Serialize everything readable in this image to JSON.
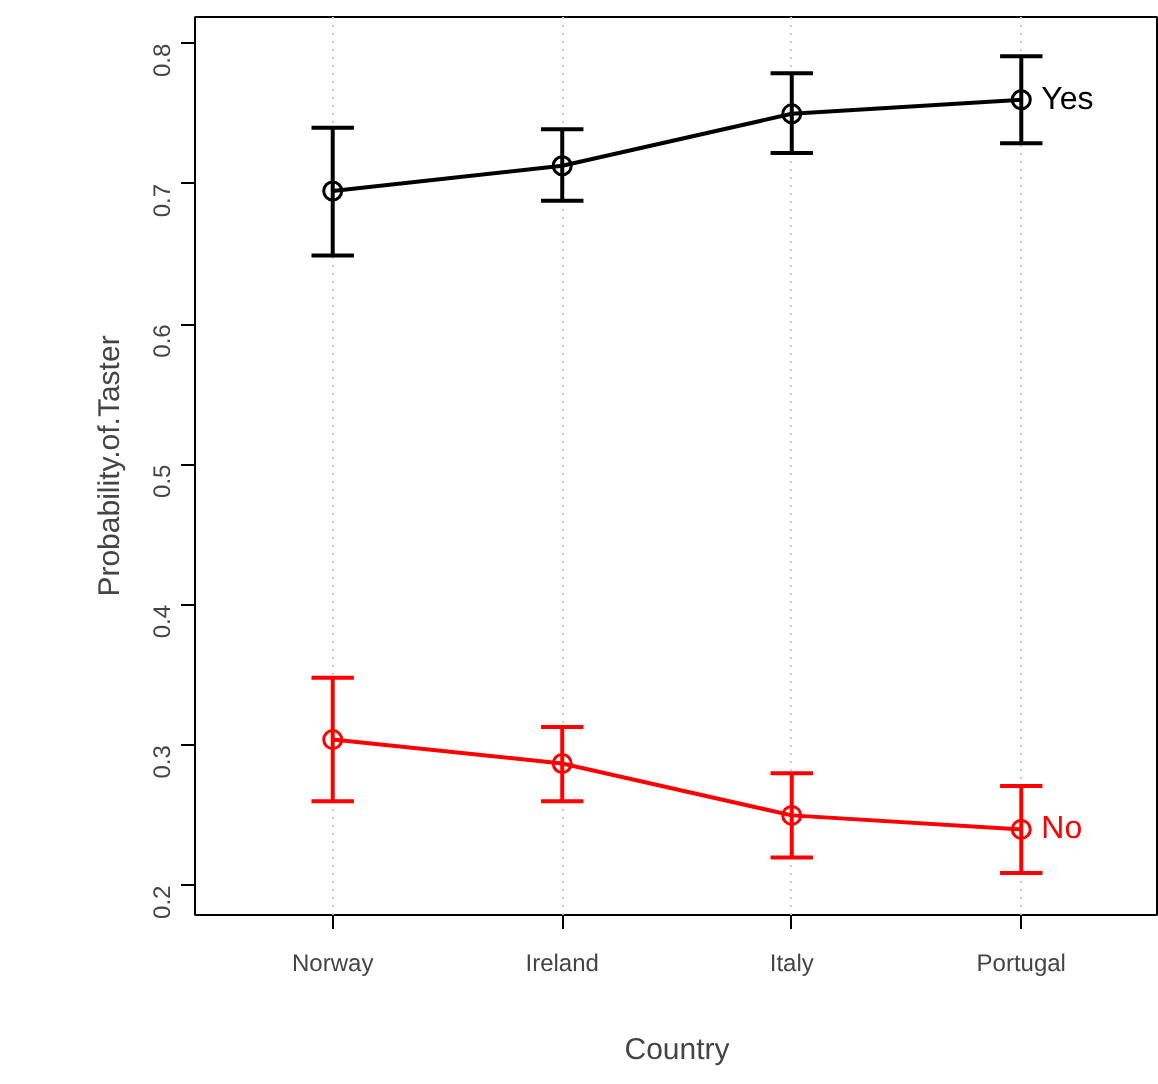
{
  "chart_data": {
    "type": "line",
    "xlabel": "Country",
    "ylabel": "Probability.of.Taster",
    "categories": [
      "Norway",
      "Ireland",
      "Italy",
      "Portugal"
    ],
    "ylim": [
      0.179,
      0.819
    ],
    "yticks": [
      0.2,
      0.3,
      0.4,
      0.5,
      0.6,
      0.7,
      0.8
    ],
    "grid": "x",
    "marker": "circle",
    "line_style": "solid",
    "series": [
      {
        "name": "Yes",
        "color": "#000000",
        "values": [
          0.695,
          0.713,
          0.75,
          0.76
        ],
        "errors": [
          [
            0.649,
            0.74
          ],
          [
            0.688,
            0.739
          ],
          [
            0.722,
            0.779
          ],
          [
            0.729,
            0.791
          ]
        ]
      },
      {
        "name": "No",
        "color": "#ff0000",
        "values": [
          0.304,
          0.287,
          0.25,
          0.24
        ],
        "errors": [
          [
            0.26,
            0.348
          ],
          [
            0.26,
            0.313
          ],
          [
            0.22,
            0.28
          ],
          [
            0.209,
            0.271
          ]
        ]
      }
    ]
  }
}
